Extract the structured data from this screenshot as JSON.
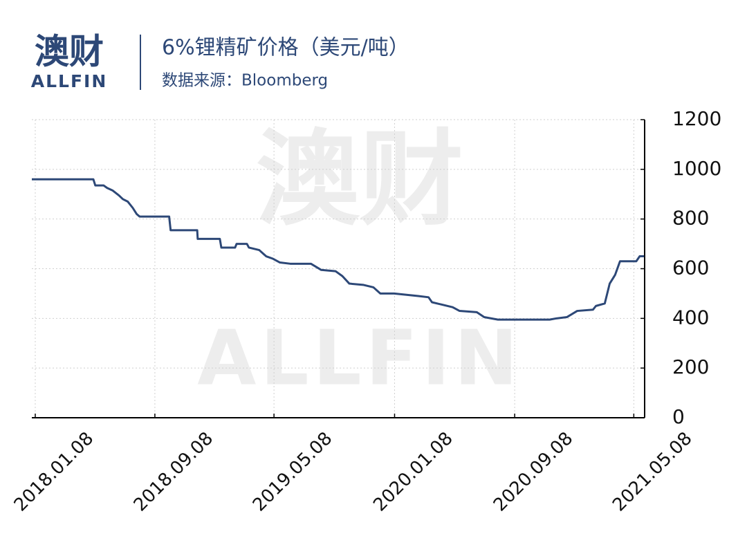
{
  "brand": {
    "name": "澳财",
    "latin": "ALLFIN"
  },
  "chart_data": {
    "type": "line",
    "title": "6%锂精矿价格（美元/吨）",
    "subtitle": "数据来源：Bloomberg",
    "x": [
      "2018.01.01",
      "2018.05.06",
      "2018.05.10",
      "2018.05.27",
      "2018.06.03",
      "2018.06.14",
      "2018.06.27",
      "2018.07.05",
      "2018.07.15",
      "2018.07.25",
      "2018.08.02",
      "2018.08.08",
      "2018.10.07",
      "2018.10.10",
      "2018.12.03",
      "2018.12.04",
      "2019.01.18",
      "2019.01.21",
      "2019.02.18",
      "2019.02.21",
      "2019.03.14",
      "2019.03.18",
      "2019.04.08",
      "2019.04.22",
      "2019.05.06",
      "2019.05.20",
      "2019.06.10",
      "2019.07.22",
      "2019.08.12",
      "2019.09.10",
      "2019.09.24",
      "2019.10.08",
      "2019.11.05",
      "2019.11.26",
      "2019.12.10",
      "2020.01.07",
      "2020.02.25",
      "2020.03.17",
      "2020.03.24",
      "2020.04.14",
      "2020.05.05",
      "2020.05.19",
      "2020.06.23",
      "2020.07.08",
      "2020.08.05",
      "2020.11.18",
      "2020.12.02",
      "2020.12.23",
      "2021.01.13",
      "2021.02.14",
      "2021.02.20",
      "2021.03.10",
      "2021.03.20",
      "2021.03.31",
      "2021.04.10",
      "2021.05.13",
      "2021.05.20",
      "2021.05.29"
    ],
    "series": [
      {
        "color": "#2d4877",
        "values": [
          960,
          960,
          935,
          935,
          925,
          915,
          895,
          880,
          870,
          845,
          820,
          810,
          810,
          755,
          755,
          720,
          720,
          685,
          685,
          700,
          700,
          685,
          675,
          650,
          640,
          625,
          620,
          620,
          595,
          590,
          570,
          540,
          535,
          525,
          500,
          500,
          490,
          485,
          465,
          455,
          445,
          430,
          425,
          405,
          395,
          395,
          400,
          405,
          430,
          435,
          450,
          460,
          540,
          575,
          630,
          630,
          650,
          650
        ]
      }
    ],
    "xlim": [
      "2018.01.01",
      "2021.05.30"
    ],
    "xticks": [
      "2018.01.08",
      "2018.09.08",
      "2019.05.08",
      "2020.01.08",
      "2020.09.08",
      "2021.05.08"
    ],
    "ylim": [
      0,
      1200
    ],
    "yticks": [
      0,
      200,
      400,
      600,
      800,
      1000,
      1200
    ],
    "grid": true
  }
}
